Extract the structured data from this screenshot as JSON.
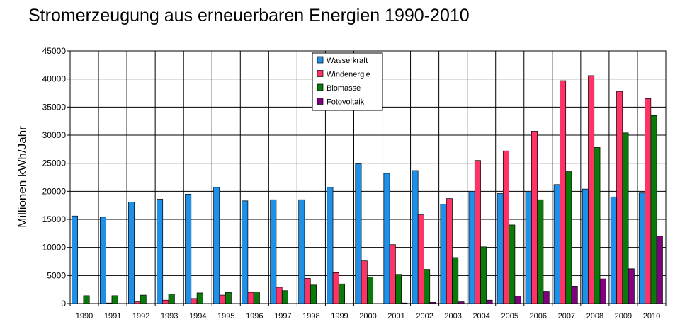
{
  "chart_data": {
    "type": "bar",
    "title": "Stromerzeugung aus erneuerbaren Energien 1990-2010",
    "xlabel": "",
    "ylabel": "Millionen kWh/Jahr",
    "ylim": [
      0,
      45000
    ],
    "yticks": [
      0,
      5000,
      10000,
      15000,
      20000,
      25000,
      30000,
      35000,
      40000,
      45000
    ],
    "grid": true,
    "legend_position": "top-center",
    "categories": [
      "1990",
      "1991",
      "1992",
      "1993",
      "1994",
      "1995",
      "1996",
      "1997",
      "1998",
      "1999",
      "2000",
      "2001",
      "2002",
      "2003",
      "2004",
      "2005",
      "2006",
      "2007",
      "2008",
      "2009",
      "2010"
    ],
    "series": [
      {
        "name": "Wasserkraft",
        "color": "#1e90e8",
        "values": [
          15600,
          15400,
          18100,
          18600,
          19500,
          20700,
          18300,
          18500,
          18500,
          20700,
          24900,
          23200,
          23700,
          17700,
          20000,
          19600,
          20000,
          21200,
          20400,
          19000,
          19700
        ]
      },
      {
        "name": "Windenergie",
        "color": "#ff3366",
        "values": [
          0,
          100,
          300,
          600,
          900,
          1500,
          2000,
          2900,
          4500,
          5500,
          7600,
          10500,
          15800,
          18700,
          25500,
          27200,
          30700,
          39700,
          40600,
          37800,
          36500
        ]
      },
      {
        "name": "Biomasse",
        "color": "#0a7a0a",
        "values": [
          1400,
          1400,
          1500,
          1700,
          1900,
          2000,
          2100,
          2300,
          3300,
          3500,
          4700,
          5200,
          6100,
          8200,
          10100,
          14000,
          18500,
          23500,
          27800,
          30400,
          33500
        ]
      },
      {
        "name": "Fotovoltaik",
        "color": "#800080",
        "values": [
          0,
          0,
          0,
          0,
          0,
          0,
          0,
          0,
          0,
          0,
          0,
          100,
          200,
          300,
          600,
          1300,
          2200,
          3100,
          4400,
          6200,
          12000
        ]
      }
    ]
  }
}
